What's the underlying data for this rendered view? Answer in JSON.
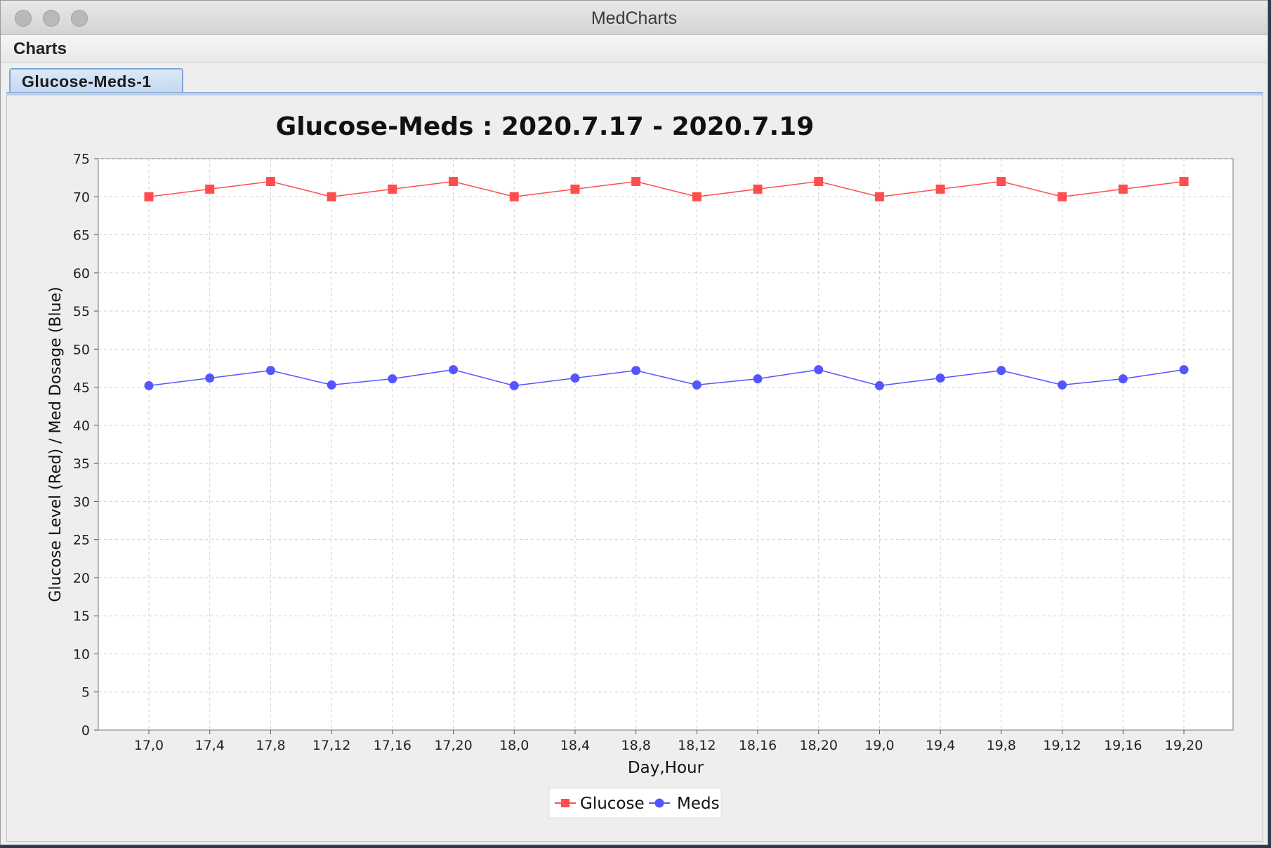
{
  "window": {
    "title": "MedCharts"
  },
  "menubar": {
    "items": [
      "Charts"
    ]
  },
  "tabs": [
    {
      "label": "Glucose-Meds-1",
      "selected": true
    }
  ],
  "colors": {
    "glucose": "#ff4d4d",
    "meds": "#5555ff",
    "grid": "#d0d0d0",
    "plot_bg": "#ffffff"
  },
  "chart_data": {
    "type": "line",
    "title": "Glucose-Meds : 2020.7.17 - 2020.7.19",
    "xlabel": "Day,Hour",
    "ylabel": "Glucose Level (Red) / Med Dosage (Blue)",
    "ylim": [
      0,
      75
    ],
    "yticks": [
      0,
      5,
      10,
      15,
      20,
      25,
      30,
      35,
      40,
      45,
      50,
      55,
      60,
      65,
      70,
      75
    ],
    "grid": true,
    "legend_position": "bottom-center",
    "categories": [
      "17,0",
      "17,4",
      "17,8",
      "17,12",
      "17,16",
      "17,20",
      "18,0",
      "18,4",
      "18,8",
      "18,12",
      "18,16",
      "18,20",
      "19,0",
      "19,4",
      "19,8",
      "19,12",
      "19,16",
      "19,20"
    ],
    "series": [
      {
        "name": "Glucose",
        "marker": "square",
        "color": "#ff4d4d",
        "values": [
          70,
          71,
          72,
          70,
          71,
          72,
          70,
          71,
          72,
          70,
          71,
          72,
          70,
          71,
          72,
          70,
          71,
          72
        ]
      },
      {
        "name": "Meds",
        "marker": "circle",
        "color": "#5555ff",
        "values": [
          45.2,
          46.2,
          47.2,
          45.3,
          46.1,
          47.3,
          45.2,
          46.2,
          47.2,
          45.3,
          46.1,
          47.3,
          45.2,
          46.2,
          47.2,
          45.3,
          46.1,
          47.3
        ]
      }
    ]
  }
}
